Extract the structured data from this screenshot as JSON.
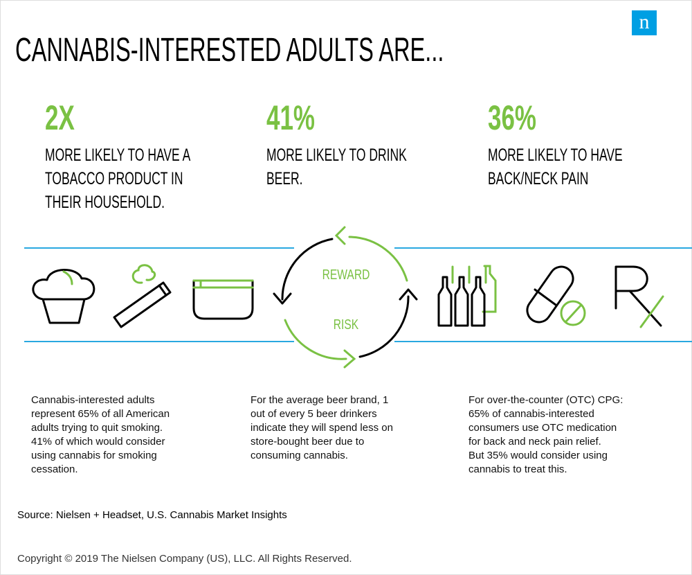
{
  "header": {
    "title": "CANNABIS-INTERESTED ADULTS ARE...",
    "logo": "n"
  },
  "stats": [
    {
      "value": "2X",
      "label": [
        "MORE LIKELY TO HAVE A",
        "TOBACCO PRODUCT IN",
        "THEIR HOUSEHOLD."
      ]
    },
    {
      "value": "41%",
      "label": [
        "MORE LIKELY TO DRINK",
        "BEER."
      ]
    },
    {
      "value": "36%",
      "label": [
        "MORE LIKELY TO HAVE",
        "BACK/NECK PAIN"
      ]
    }
  ],
  "cycle": {
    "top": "REWARD",
    "bottom": "RISK"
  },
  "notes": [
    [
      "Cannabis-interested adults",
      "represent 65% of all American",
      "adults trying to quit smoking.",
      "41% of which would consider",
      "using cannabis for smoking",
      "cessation."
    ],
    [
      "For the average beer brand, 1",
      "out of every 5 beer drinkers",
      "indicate they will spend less on",
      "store-bought beer due to",
      "consuming cannabis."
    ],
    [
      "For over-the-counter (OTC) CPG:",
      "65% of cannabis-interested",
      "consumers use OTC medication",
      "for back and neck pain relief.",
      "But 35% would consider using",
      "cannabis to treat this."
    ]
  ],
  "source": "Source: Nielsen + Headset, U.S. Cannabis Market Insights",
  "copyright": "Copyright © 2019 The Nielsen Company (US), LLC. All Rights Reserved."
}
